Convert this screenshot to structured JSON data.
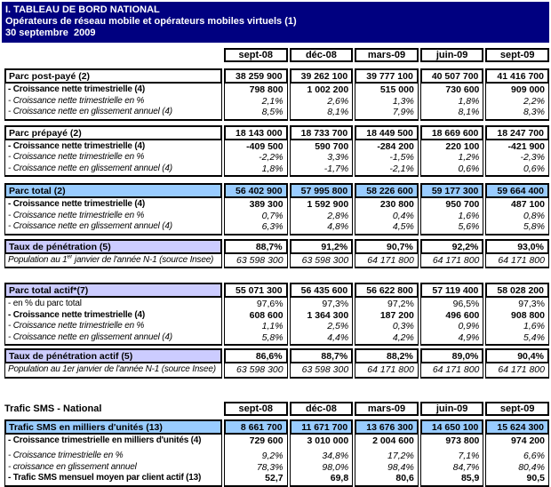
{
  "header": {
    "line1": "I. TABLEAU DE BORD NATIONAL",
    "line2": "Opérateurs de réseau mobile et opérateurs mobiles virtuels (1)",
    "line3": "30 septembre  2009"
  },
  "columns": [
    "sept-08",
    "déc-08",
    "mars-09",
    "juin-09",
    "sept-09"
  ],
  "sms_section_label": "Trafic SMS - National",
  "colors": {
    "banner_bg": "#000080",
    "banner_text": "#FFFFFF",
    "highlight_blue": "#99CCFF",
    "highlight_lavender": "#CCCCFF",
    "border": "#000000"
  },
  "blocks": [
    {
      "name": "parc-post-paye",
      "title": {
        "label": "Parc post-payé (2)",
        "highlight": null,
        "highlight_scope": null,
        "values": [
          "38 259 900",
          "39 262 100",
          "39 777 100",
          "40 507 700",
          "41 416 700"
        ]
      },
      "rows": [
        {
          "label": "- Croissance nette trimestrielle (4)",
          "style": "bold",
          "values": [
            "798 800",
            "1 002 200",
            "515 000",
            "730 600",
            "909 000"
          ]
        },
        {
          "label": "- Croissance nette trimestrielle en %",
          "style": "italic",
          "values": [
            "2,1%",
            "2,6%",
            "1,3%",
            "1,8%",
            "2,2%"
          ]
        },
        {
          "label": "- Croissance nette en glissement annuel (4)",
          "style": "italic",
          "values": [
            "8,5%",
            "8,1%",
            "7,9%",
            "8,1%",
            "8,3%"
          ]
        }
      ]
    },
    {
      "name": "parc-prepaye",
      "title": {
        "label": "Parc prépayé (2)",
        "highlight": null,
        "highlight_scope": null,
        "values": [
          "18 143 000",
          "18 733 700",
          "18 449 500",
          "18 669 600",
          "18 247 700"
        ]
      },
      "rows": [
        {
          "label": "- Croissance nette trimestrielle (4)",
          "style": "bold",
          "values": [
            "-409 500",
            "590 700",
            "-284 200",
            "220 100",
            "-421 900"
          ]
        },
        {
          "label": "- Croissance nette trimestrielle en %",
          "style": "italic",
          "values": [
            "-2,2%",
            "3,3%",
            "-1,5%",
            "1,2%",
            "-2,3%"
          ]
        },
        {
          "label": "- Croissance nette en glissement annuel (4)",
          "style": "italic",
          "values": [
            "1,8%",
            "-1,7%",
            "-2,1%",
            "0,6%",
            "0,6%"
          ]
        }
      ]
    },
    {
      "name": "parc-total",
      "title": {
        "label": "Parc total (2)",
        "highlight": "blue",
        "highlight_scope": "row",
        "values": [
          "56 402 900",
          "57 995 800",
          "58 226 600",
          "59 177 300",
          "59 664 400"
        ]
      },
      "rows": [
        {
          "label": "- Croissance nette trimestrielle (4)",
          "style": "bold",
          "values": [
            "389 300",
            "1 592 900",
            "230 800",
            "950 700",
            "487 100"
          ]
        },
        {
          "label": "- Croissance nette trimestrielle en %",
          "style": "italic",
          "values": [
            "0,7%",
            "2,8%",
            "0,4%",
            "1,6%",
            "0,8%"
          ]
        },
        {
          "label": "- Croissance nette en glissement annuel (4)",
          "style": "italic",
          "values": [
            "6,3%",
            "4,8%",
            "4,5%",
            "5,6%",
            "5,8%"
          ]
        }
      ]
    },
    {
      "name": "taux-penetration",
      "title": {
        "label": "Taux de pénétration (5)",
        "highlight": "lavender",
        "highlight_scope": "label",
        "values": [
          "88,7%",
          "91,2%",
          "90,7%",
          "92,2%",
          "93,0%"
        ]
      },
      "rows": [
        {
          "label": "Population au 1er janvier de l'année N-1 (source Insee)",
          "style": "italic",
          "label_parts": {
            "pre": "Population au 1",
            "sup": "er",
            "post": "  janvier de l'année N-1 (source Insee)"
          },
          "values": [
            "63 598 300",
            "63 598 300",
            "64 171 800",
            "64 171 800",
            "64 171 800"
          ]
        }
      ]
    },
    {
      "name": "parc-total-actif",
      "title": {
        "label": "Parc total actif*(7)",
        "highlight": "lavender",
        "highlight_scope": "label",
        "values": [
          "55 071 300",
          "56 435 600",
          "56 622 800",
          "57 119 400",
          "58 028 200"
        ]
      },
      "rows": [
        {
          "label": "- en % du parc total",
          "style": "regular",
          "values": [
            "97,6%",
            "97,3%",
            "97,2%",
            "96,5%",
            "97,3%"
          ]
        },
        {
          "label": "- Croissance nette trimestrielle (4)",
          "style": "bold",
          "values": [
            "608 600",
            "1 364 300",
            "187 200",
            "496 600",
            "908 800"
          ]
        },
        {
          "label": "- Croissance nette trimestrielle en %",
          "style": "italic",
          "values": [
            "1,1%",
            "2,5%",
            "0,3%",
            "0,9%",
            "1,6%"
          ]
        },
        {
          "label": "- Croissance nette en glissement annuel (4)",
          "style": "italic",
          "values": [
            "5,8%",
            "4,4%",
            "4,2%",
            "4,9%",
            "5,4%"
          ]
        }
      ]
    },
    {
      "name": "taux-penetration-actif",
      "title": {
        "label": "Taux de pénétration actif (5)",
        "highlight": "lavender",
        "highlight_scope": "label",
        "values": [
          "86,6%",
          "88,7%",
          "88,2%",
          "89,0%",
          "90,4%"
        ]
      },
      "rows": [
        {
          "label": "Population au 1er janvier de l'année N-1 (source Insee)",
          "style": "italic",
          "values": [
            "63 598 300",
            "63 598 300",
            "64 171 800",
            "64 171 800",
            "64 171 800"
          ]
        }
      ]
    },
    {
      "name": "trafic-sms",
      "section_label": "Trafic SMS - National",
      "title": {
        "label": "Trafic SMS en milliers d'unités (13)",
        "highlight": "blue",
        "highlight_scope": "row",
        "values": [
          "8 661 700",
          "11 671 700",
          "13 676 300",
          "14 650 100",
          "15 624 300"
        ]
      },
      "rows": [
        {
          "label": "- Croissance trimestrielle en milliers d'unités (4)",
          "style": "bold",
          "gap_after": true,
          "values": [
            "729 600",
            "3 010 000",
            "2 004 600",
            "973 800",
            "974 200"
          ]
        },
        {
          "label": "- Croissance trimestrielle en %",
          "style": "italic",
          "values": [
            "9,2%",
            "34,8%",
            "17,2%",
            "7,1%",
            "6,6%"
          ]
        },
        {
          "label": "- croissance en glissement annuel",
          "style": "italic",
          "values": [
            "78,3%",
            "98,0%",
            "98,4%",
            "84,7%",
            "80,4%"
          ]
        },
        {
          "label": "- Trafic SMS mensuel moyen par client actif (13)",
          "style": "bold",
          "values": [
            "52,7",
            "69,8",
            "80,6",
            "85,9",
            "90,5"
          ]
        }
      ]
    }
  ]
}
